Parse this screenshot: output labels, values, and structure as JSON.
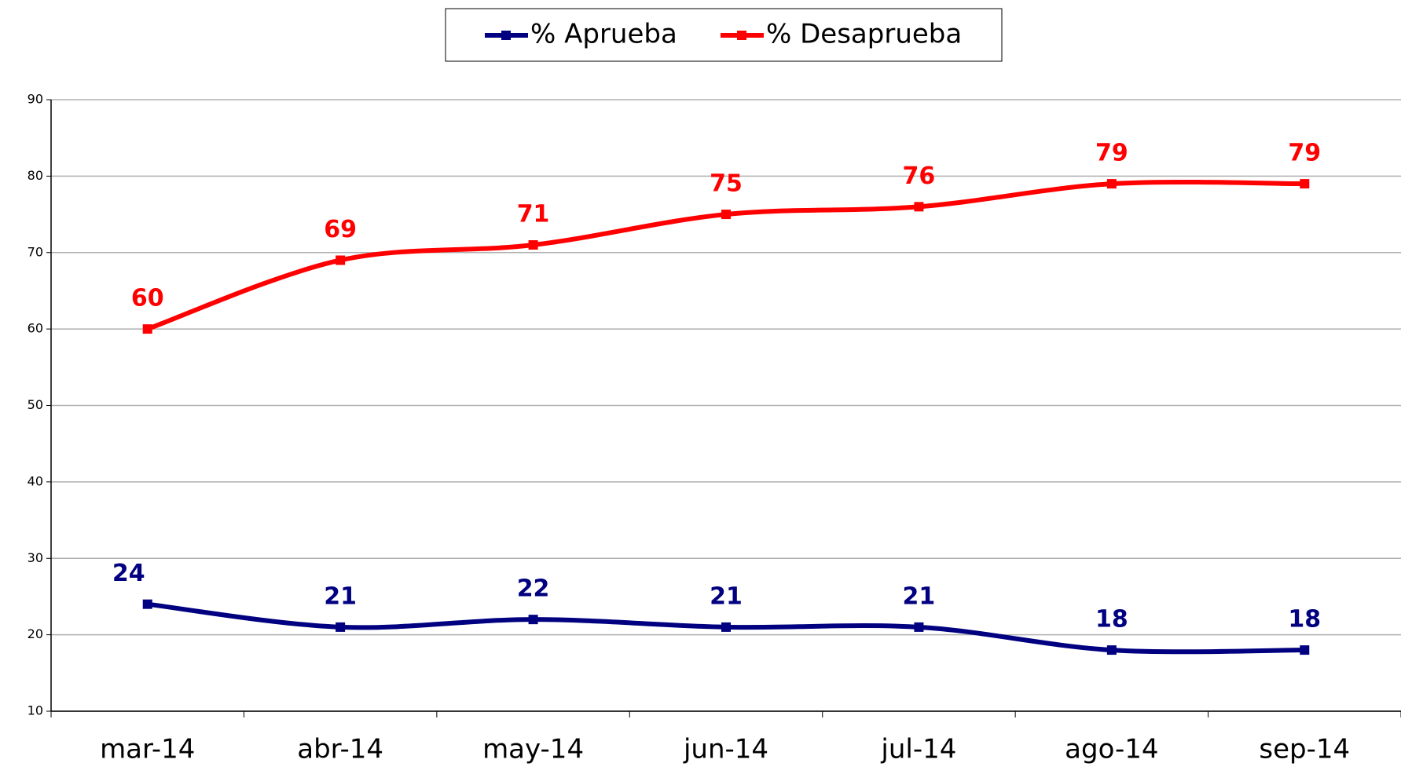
{
  "chart_data": {
    "type": "line",
    "categories": [
      "mar-14",
      "abr-14",
      "may-14",
      "jun-14",
      "jul-14",
      "ago-14",
      "sep-14"
    ],
    "series": [
      {
        "name": "% Aprueba",
        "color": "#000080",
        "values": [
          24,
          21,
          22,
          21,
          21,
          18,
          18
        ]
      },
      {
        "name": "% Desaprueba",
        "color": "#ff0000",
        "values": [
          60,
          69,
          71,
          75,
          76,
          79,
          79
        ]
      }
    ],
    "ylim": [
      10,
      90
    ],
    "yticks": [
      10,
      20,
      30,
      40,
      50,
      60,
      70,
      80,
      90
    ],
    "grid": true,
    "legend": "top",
    "smooth": true
  }
}
